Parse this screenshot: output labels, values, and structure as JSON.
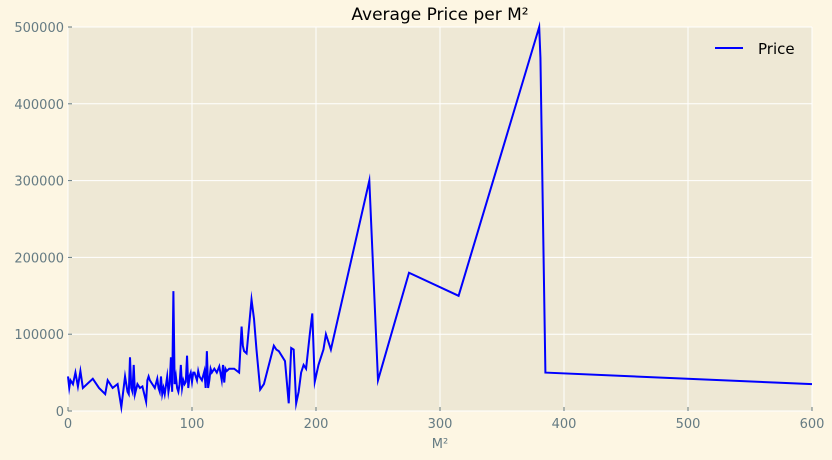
{
  "chart_data": {
    "type": "line",
    "title": "Average Price per M²",
    "xlabel": "M²",
    "ylabel": "",
    "xlim": [
      0,
      600
    ],
    "ylim": [
      0,
      500000
    ],
    "x_ticks": [
      0,
      100,
      200,
      300,
      400,
      500,
      600
    ],
    "y_ticks": [
      0,
      100000,
      200000,
      300000,
      400000,
      500000
    ],
    "grid": true,
    "legend_position": "top-right",
    "series": [
      {
        "name": "Price",
        "color": "#0000ff",
        "x": [
          0,
          1,
          2,
          4,
          6,
          8,
          10,
          12,
          20,
          25,
          30,
          32,
          36,
          40,
          43,
          46,
          48,
          49,
          50,
          51,
          52,
          53,
          54,
          56,
          58,
          60,
          63,
          64,
          65,
          66,
          68,
          70,
          72,
          73,
          74,
          75,
          76,
          77,
          78,
          80,
          81,
          82,
          83,
          84,
          85,
          86,
          87,
          88,
          89,
          90,
          91,
          92,
          93,
          94,
          95,
          96,
          97,
          98,
          99,
          100,
          101,
          102,
          104,
          105,
          106,
          108,
          110,
          111,
          112,
          113,
          114,
          115,
          116,
          118,
          120,
          122,
          124,
          125,
          126,
          127,
          128,
          130,
          134,
          138,
          140,
          141,
          142,
          144,
          146,
          148,
          150,
          152,
          155,
          158,
          162,
          166,
          168,
          170,
          175,
          178,
          180,
          182,
          184,
          186,
          188,
          190,
          192,
          195,
          197,
          199,
          202,
          206,
          208,
          210,
          212,
          243,
          250,
          275,
          315,
          380,
          381,
          385,
          600
        ],
        "values": [
          45000,
          30000,
          40000,
          35000,
          50000,
          32000,
          52000,
          30000,
          42000,
          30000,
          22000,
          40000,
          30000,
          35000,
          5000,
          45000,
          25000,
          22000,
          70000,
          30000,
          25000,
          60000,
          22000,
          35000,
          30000,
          32000,
          12000,
          40000,
          45000,
          40000,
          35000,
          30000,
          42000,
          30000,
          25000,
          45000,
          22000,
          30000,
          22000,
          45000,
          25000,
          35000,
          70000,
          25000,
          156000,
          35000,
          45000,
          30000,
          25000,
          35000,
          60000,
          30000,
          40000,
          35000,
          38000,
          72000,
          30000,
          45000,
          50000,
          38000,
          50000,
          50000,
          40000,
          52000,
          45000,
          40000,
          52000,
          30000,
          78000,
          30000,
          40000,
          55000,
          50000,
          55000,
          50000,
          58000,
          40000,
          60000,
          37000,
          55000,
          52000,
          55000,
          55000,
          50000,
          110000,
          85000,
          78000,
          75000,
          110000,
          145000,
          120000,
          80000,
          28000,
          35000,
          60000,
          85000,
          80000,
          78000,
          65000,
          10000,
          82000,
          80000,
          10000,
          25000,
          50000,
          60000,
          55000,
          100000,
          127000,
          38000,
          60000,
          80000,
          100000,
          90000,
          80000,
          300000,
          40000,
          180000,
          150000,
          500000,
          460000,
          50000,
          35000
        ]
      }
    ]
  }
}
